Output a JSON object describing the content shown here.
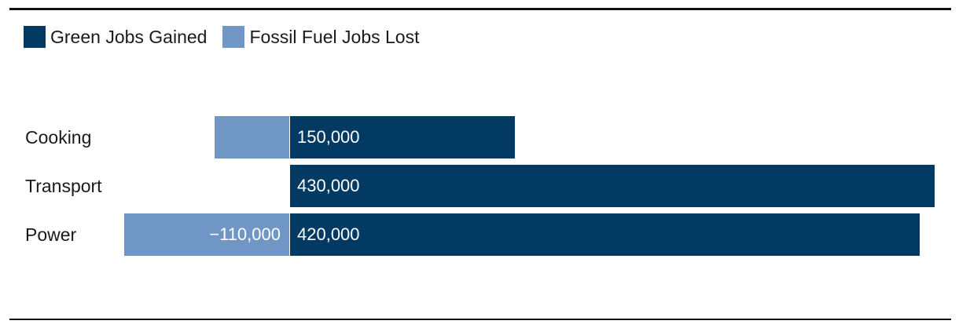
{
  "colors": {
    "gained": "#033a63",
    "lost": "#7096c5",
    "rule": "#111111"
  },
  "legend": [
    {
      "label": "Green Jobs Gained",
      "color_key": "gained"
    },
    {
      "label": "Fossil Fuel Jobs Lost",
      "color_key": "lost"
    }
  ],
  "chart_data": {
    "type": "bar",
    "orientation": "horizontal",
    "stacked": "diverging",
    "categories": [
      "Cooking",
      "Transport",
      "Power"
    ],
    "series": [
      {
        "name": "Green Jobs Gained",
        "values": [
          150000,
          430000,
          420000
        ],
        "labels": [
          "150,000",
          "430,000",
          "420,000"
        ]
      },
      {
        "name": "Fossil Fuel Jobs Lost",
        "values": [
          -50000,
          0,
          -110000
        ],
        "labels": [
          "",
          "",
          "−110,000"
        ]
      }
    ],
    "xlim": [
      -110000,
      430000
    ],
    "grid": false,
    "legend_position": "top-left"
  }
}
